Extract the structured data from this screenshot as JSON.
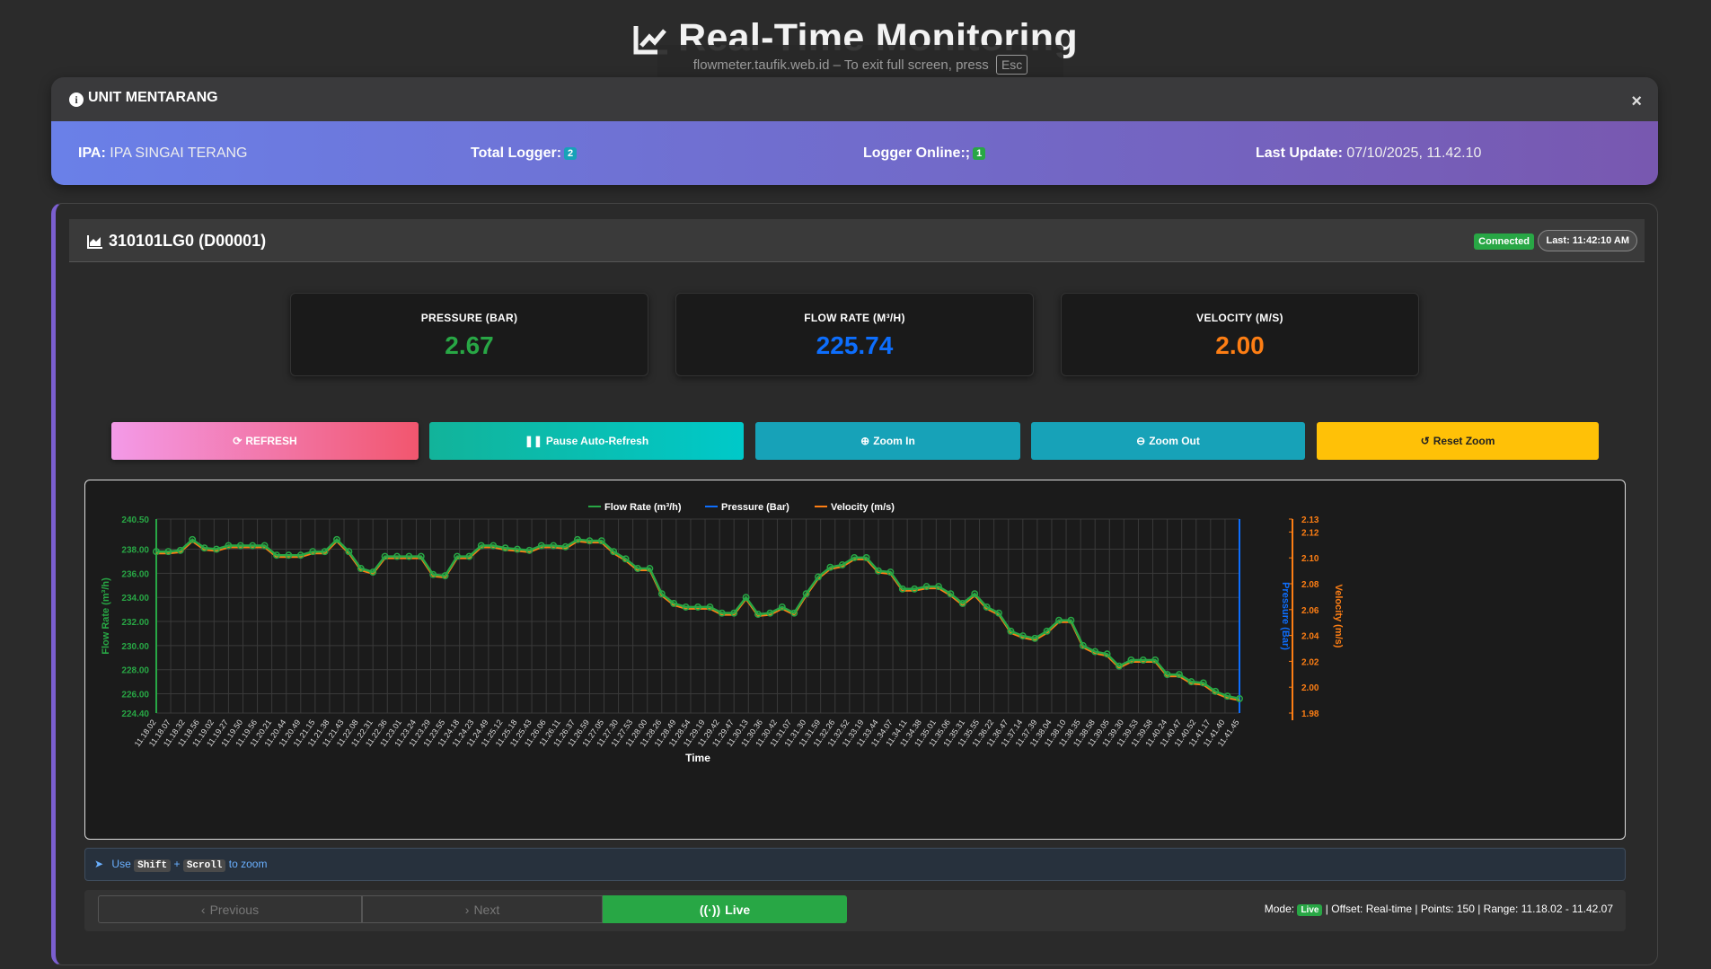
{
  "page": {
    "title": "Real-Time Monitoring"
  },
  "fullscreen_notice": {
    "text": "flowmeter.taufik.web.id – To exit full screen, press",
    "key": "Esc"
  },
  "unit": {
    "name": "UNIT MENTARANG",
    "ipa_label": "IPA:",
    "ipa_value": "IPA SINGAI TERANG",
    "total_logger_label": "Total Logger:",
    "total_logger_value": "2",
    "logger_online_label": "Logger Online:;",
    "logger_online_value": "1",
    "last_update_label": "Last Update:",
    "last_update_value": "07/10/2025, 11.42.10"
  },
  "logger": {
    "title": "310101LG0 (D00001)",
    "status": "Connected",
    "last": "Last: 11:42:10 AM",
    "metrics": [
      {
        "label": "PRESSURE (BAR)",
        "value": "2.67",
        "color": "#28a745"
      },
      {
        "label": "FLOW RATE (M³/H)",
        "value": "225.74",
        "color": "#0d6efd"
      },
      {
        "label": "VELOCITY (M/S)",
        "value": "2.00",
        "color": "#fd7e14"
      }
    ]
  },
  "toolbar": {
    "refresh": "REFRESH",
    "pause": "Pause Auto-Refresh",
    "zoom_in": "Zoom In",
    "zoom_out": "Zoom Out",
    "reset_zoom": "Reset Zoom"
  },
  "hint": {
    "use": "Use",
    "key1": "Shift",
    "plus": "+",
    "key2": "Scroll",
    "suffix": "to zoom"
  },
  "navigation": {
    "previous": "Previous",
    "next": "Next",
    "live": "Live",
    "mode_label": "Mode:",
    "mode_value": "Live",
    "info": "| Offset: Real-time | Points: 150 | Range: 11.18.02 - 11.42.07"
  },
  "chart_data": {
    "type": "line",
    "xlabel": "Time",
    "ylabel_left": "Flow Rate (m³/h)",
    "ylabel_right1": "Pressure (Bar)",
    "ylabel_right2": "Velocity (m/s)",
    "ylim_left": [
      224.4,
      240.5
    ],
    "ylim_right2": [
      1.98,
      2.13
    ],
    "left_ticks": [
      "240.50",
      "238.00",
      "236.00",
      "234.00",
      "232.00",
      "230.00",
      "228.00",
      "226.00",
      "224.40"
    ],
    "right_ticks": [
      "2.13",
      "2.12",
      "2.10",
      "2.08",
      "2.06",
      "2.04",
      "2.02",
      "2.00",
      "1.98"
    ],
    "legend_position": "top-center",
    "grid": true,
    "x_labels": [
      "11.18.02",
      "11.18.07",
      "11.18.32",
      "11.18.56",
      "11.19.02",
      "11.19.27",
      "11.19.50",
      "11.19.56",
      "11.20.21",
      "11.20.44",
      "11.20.49",
      "11.21.15",
      "11.21.38",
      "11.21.43",
      "11.22.08",
      "11.22.31",
      "11.22.36",
      "11.23.01",
      "11.23.24",
      "11.23.29",
      "11.23.55",
      "11.24.18",
      "11.24.23",
      "11.24.49",
      "11.25.12",
      "11.25.18",
      "11.25.43",
      "11.26.06",
      "11.26.11",
      "11.26.37",
      "11.26.59",
      "11.27.05",
      "11.27.30",
      "11.27.53",
      "11.28.00",
      "11.28.26",
      "11.28.49",
      "11.28.54",
      "11.29.19",
      "11.29.42",
      "11.29.47",
      "11.30.13",
      "11.30.36",
      "11.30.42",
      "11.31.07",
      "11.31.30",
      "11.31.59",
      "11.32.26",
      "11.32.52",
      "11.33.19",
      "11.33.44",
      "11.34.07",
      "11.34.11",
      "11.34.38",
      "11.35.01",
      "11.35.06",
      "11.35.31",
      "11.35.55",
      "11.36.22",
      "11.36.47",
      "11.37.14",
      "11.37.39",
      "11.38.04",
      "11.38.10",
      "11.38.35",
      "11.38.58",
      "11.39.05",
      "11.39.30",
      "11.39.53",
      "11.39.58",
      "11.40.24",
      "11.40.47",
      "11.40.52",
      "11.41.17",
      "11.41.40",
      "11.41.45"
    ],
    "series": [
      {
        "name": "Flow Rate (m³/h)",
        "color": "#28a745",
        "values": [
          237.8,
          237.8,
          237.9,
          238.8,
          238.1,
          238.0,
          238.3,
          238.3,
          238.3,
          238.3,
          237.5,
          237.5,
          237.5,
          237.8,
          237.8,
          238.8,
          237.8,
          236.4,
          236.1,
          237.4,
          237.4,
          237.4,
          237.4,
          235.9,
          235.8,
          237.4,
          237.4,
          238.3,
          238.3,
          238.1,
          238.0,
          237.9,
          238.3,
          238.3,
          238.2,
          238.8,
          238.7,
          238.7,
          237.8,
          237.2,
          236.4,
          236.4,
          234.3,
          233.5,
          233.2,
          233.2,
          233.2,
          232.7,
          232.7,
          234.0,
          232.6,
          232.7,
          233.2,
          232.7,
          234.3,
          235.7,
          236.5,
          236.7,
          237.3,
          237.3,
          236.2,
          236.1,
          234.7,
          234.7,
          234.9,
          234.9,
          234.3,
          233.5,
          234.3,
          233.2,
          232.7,
          231.2,
          230.8,
          230.6,
          231.2,
          232.1,
          232.1,
          230.0,
          229.5,
          229.3,
          228.3,
          228.8,
          228.8,
          228.8,
          227.6,
          227.6,
          227.0,
          226.9,
          226.2,
          225.8,
          225.6
        ]
      }
    ]
  }
}
